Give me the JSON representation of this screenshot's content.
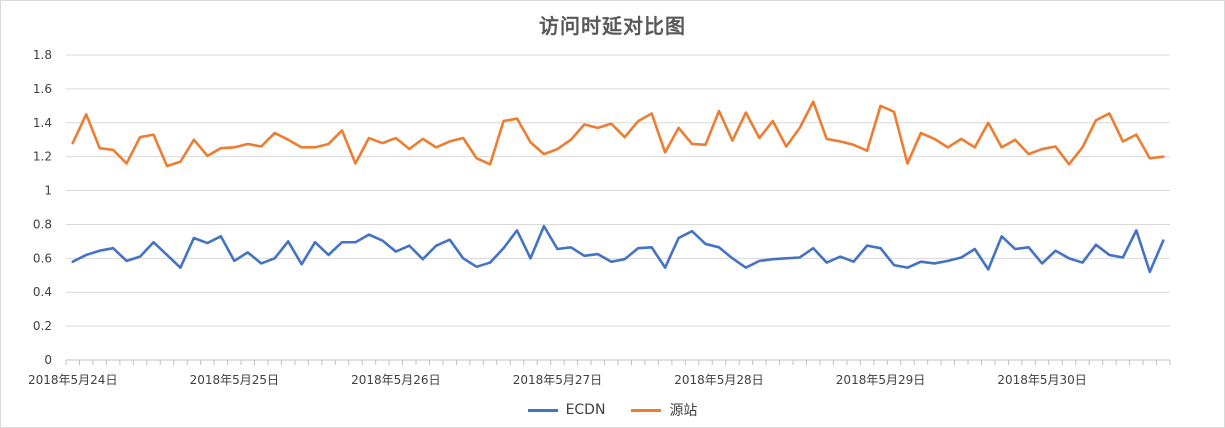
{
  "chart_data": {
    "type": "line",
    "title": "访问时延对比图",
    "xlabel": "",
    "ylabel": "",
    "ylim": [
      0,
      1.8
    ],
    "yticks": [
      "0",
      "0.2",
      "0.4",
      "0.6",
      "0.8",
      "1",
      "1.2",
      "1.4",
      "1.6",
      "1.8"
    ],
    "x_tick_labels": [
      "2018年5月24日",
      "2018年5月25日",
      "2018年5月26日",
      "2018年5月27日",
      "2018年5月28日",
      "2018年5月29日",
      "2018年5月30日"
    ],
    "points_per_day": 12,
    "grid": true,
    "legend_position": "bottom",
    "series": [
      {
        "name": "ECDN",
        "color": "#4472c4",
        "values": [
          0.58,
          0.62,
          0.645,
          0.66,
          0.585,
          0.61,
          0.695,
          0.62,
          0.545,
          0.72,
          0.69,
          0.73,
          0.585,
          0.635,
          0.57,
          0.6,
          0.7,
          0.565,
          0.695,
          0.62,
          0.695,
          0.695,
          0.74,
          0.705,
          0.64,
          0.675,
          0.595,
          0.675,
          0.71,
          0.6,
          0.55,
          0.575,
          0.66,
          0.765,
          0.6,
          0.79,
          0.655,
          0.665,
          0.615,
          0.625,
          0.58,
          0.595,
          0.66,
          0.665,
          0.545,
          0.72,
          0.76,
          0.685,
          0.665,
          0.6,
          0.545,
          0.585,
          0.595,
          0.6,
          0.605,
          0.66,
          0.575,
          0.61,
          0.58,
          0.675,
          0.66,
          0.56,
          0.545,
          0.58,
          0.57,
          0.585,
          0.605,
          0.655,
          0.535,
          0.73,
          0.655,
          0.665,
          0.57,
          0.645,
          0.6,
          0.575,
          0.68,
          0.62,
          0.605,
          0.765,
          0.52,
          0.705
        ]
      },
      {
        "name": "源站",
        "color": "#ed7d31",
        "values": [
          1.28,
          1.45,
          1.25,
          1.24,
          1.16,
          1.315,
          1.33,
          1.145,
          1.17,
          1.3,
          1.205,
          1.25,
          1.255,
          1.275,
          1.26,
          1.34,
          1.3,
          1.255,
          1.255,
          1.275,
          1.355,
          1.16,
          1.31,
          1.28,
          1.31,
          1.245,
          1.305,
          1.255,
          1.29,
          1.31,
          1.19,
          1.155,
          1.41,
          1.425,
          1.285,
          1.215,
          1.245,
          1.3,
          1.39,
          1.37,
          1.395,
          1.315,
          1.41,
          1.455,
          1.225,
          1.37,
          1.275,
          1.27,
          1.47,
          1.295,
          1.46,
          1.31,
          1.41,
          1.26,
          1.37,
          1.525,
          1.305,
          1.29,
          1.27,
          1.235,
          1.5,
          1.465,
          1.16,
          1.34,
          1.305,
          1.255,
          1.305,
          1.255,
          1.4,
          1.255,
          1.3,
          1.215,
          1.245,
          1.26,
          1.155,
          1.255,
          1.415,
          1.455,
          1.29,
          1.33,
          1.19,
          1.2
        ]
      }
    ]
  }
}
